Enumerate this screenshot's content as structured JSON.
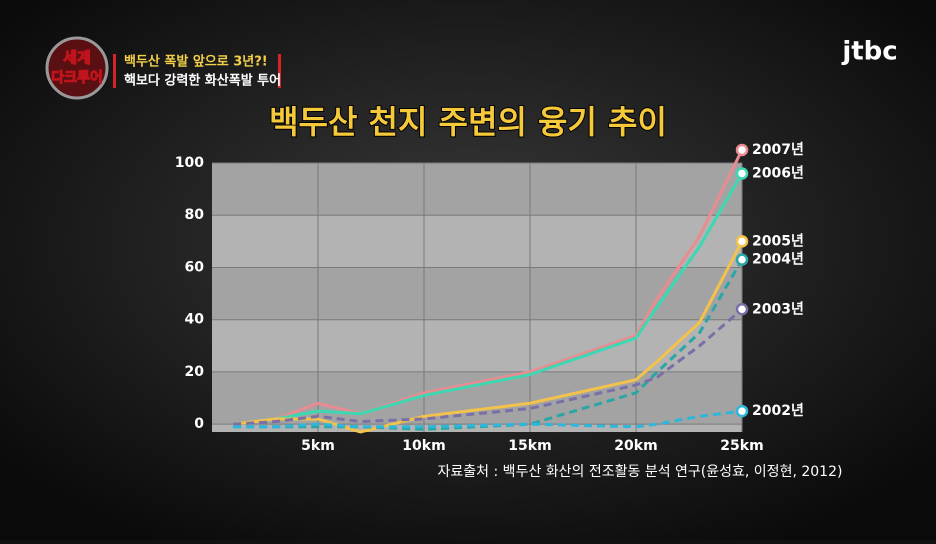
{
  "broadcast": {
    "logo": [
      "세계",
      "다크투어"
    ],
    "headline": "백두산 폭발 앞으로 3년?!",
    "subheadline": "핵보다 강력한 화산폭발 투어",
    "channel": "jtbc"
  },
  "chart_data": {
    "type": "line",
    "title": "백두산 천지 주변의 융기 추이",
    "source": "자료출처 : 백두산 화산의 전조활동 분석 연구(윤성효, 이정현, 2012)",
    "x": [
      1,
      3,
      5,
      7,
      10,
      15,
      20,
      21,
      23,
      25
    ],
    "series": [
      {
        "name": "2007년",
        "color": "#e98c92",
        "dashed": false,
        "values": [
          0,
          2,
          8,
          4,
          12,
          20,
          34,
          48,
          72,
          105
        ]
      },
      {
        "name": "2006년",
        "color": "#3dd8b2",
        "dashed": false,
        "values": [
          0,
          2,
          5,
          4,
          11,
          19,
          33,
          45,
          68,
          96
        ]
      },
      {
        "name": "2005년",
        "color": "#f2c24c",
        "dashed": false,
        "values": [
          0,
          2,
          2,
          -3,
          3,
          8,
          17,
          24,
          39,
          70
        ]
      },
      {
        "name": "2004년",
        "color": "#2aa7a5",
        "dashed": true,
        "values": [
          -1,
          -1,
          -1,
          -1,
          -2,
          0,
          12,
          20,
          35,
          63
        ]
      },
      {
        "name": "2003년",
        "color": "#7a6fa6",
        "dashed": true,
        "values": [
          0,
          1,
          3,
          1,
          2,
          6,
          15,
          18,
          30,
          44
        ]
      },
      {
        "name": "2002년",
        "color": "#2fb6da",
        "dashed": true,
        "values": [
          -1,
          -1,
          0,
          -1,
          -1,
          0,
          -1,
          0,
          3,
          5
        ]
      }
    ],
    "xlim": [
      0,
      25
    ],
    "xticks": [
      {
        "value": 5,
        "label": "5km"
      },
      {
        "value": 10,
        "label": "10km"
      },
      {
        "value": 15,
        "label": "15km"
      },
      {
        "value": 20,
        "label": "20km"
      },
      {
        "value": 25,
        "label": "25km"
      }
    ],
    "ylim": [
      -3,
      100
    ],
    "yticks": [
      0,
      20,
      40,
      60,
      80,
      100
    ],
    "grid": true
  }
}
